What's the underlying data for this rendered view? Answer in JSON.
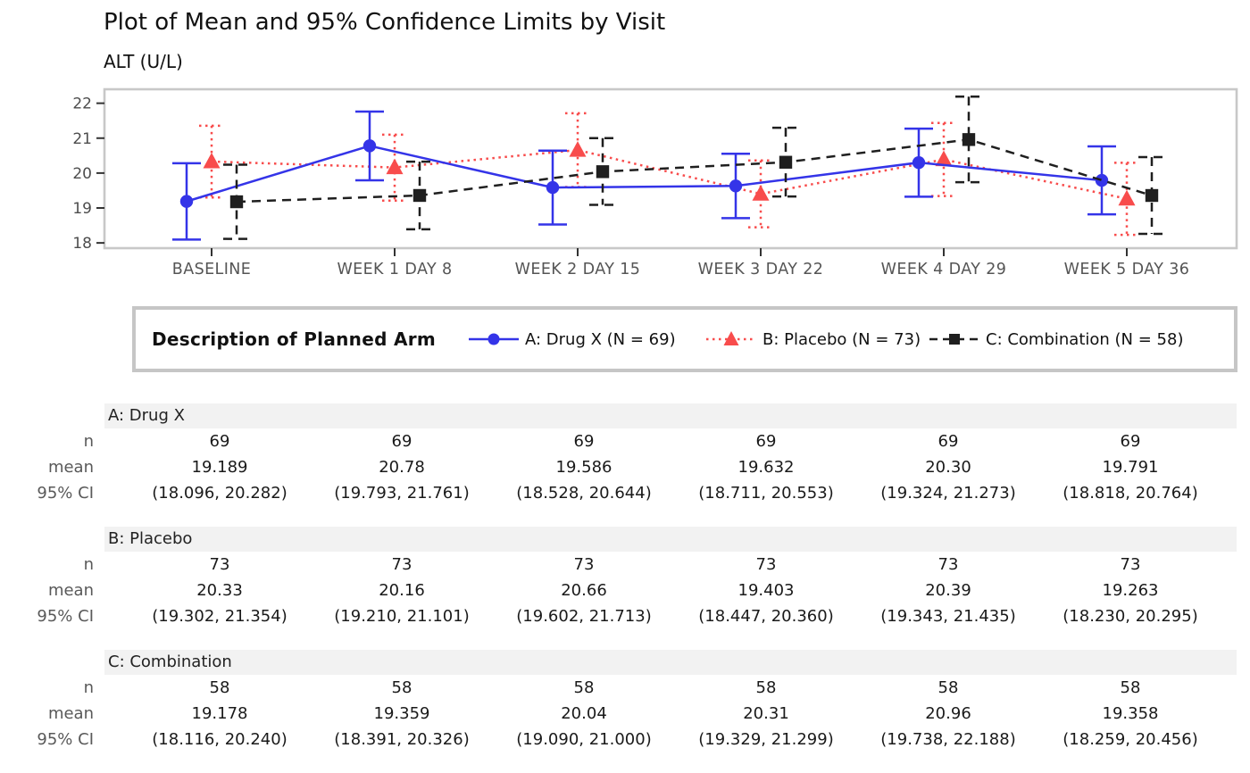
{
  "title": "Plot of Mean and 95% Confidence Limits by Visit",
  "subtitle": "ALT (U/L)",
  "legend": {
    "title": "Description of Planned Arm",
    "entries": [
      {
        "label": "A: Drug X (N = 69)",
        "marker": "circle",
        "line": "solid",
        "color": "#3434e8"
      },
      {
        "label": "B: Placebo (N = 73)",
        "marker": "triangle",
        "line": "dotted",
        "color": "#f84c4c"
      },
      {
        "label": "C: Combination (N = 58)",
        "marker": "square",
        "line": "dashed",
        "color": "#1f1f1f"
      }
    ]
  },
  "chart_data": {
    "type": "line",
    "x": [
      "BASELINE",
      "WEEK 1 DAY 8",
      "WEEK 2 DAY 15",
      "WEEK 3 DAY 22",
      "WEEK 4 DAY 29",
      "WEEK 5 DAY 36"
    ],
    "yticks": [
      18,
      19,
      20,
      21,
      22
    ],
    "ylim": [
      17.85,
      22.4
    ],
    "grid": false,
    "legend_position": "bottom-box",
    "series": [
      {
        "name": "A: Drug X (N = 69)",
        "color": "#3434e8",
        "marker": "circle",
        "line": "solid",
        "dodge": -28,
        "mean": [
          19.189,
          20.78,
          19.586,
          19.632,
          20.3,
          19.791
        ],
        "ci_low": [
          18.096,
          19.793,
          18.528,
          18.711,
          19.324,
          18.818
        ],
        "ci_high": [
          20.282,
          21.761,
          20.644,
          20.553,
          21.273,
          20.764
        ]
      },
      {
        "name": "B: Placebo (N = 73)",
        "color": "#f84c4c",
        "marker": "triangle",
        "line": "dotted",
        "dodge": 0,
        "mean": [
          20.33,
          20.16,
          20.66,
          19.403,
          20.39,
          19.263
        ],
        "ci_low": [
          19.302,
          19.21,
          19.602,
          18.447,
          19.343,
          18.23
        ],
        "ci_high": [
          21.354,
          21.101,
          21.713,
          20.36,
          21.435,
          20.295
        ]
      },
      {
        "name": "C: Combination (N = 58)",
        "color": "#1f1f1f",
        "marker": "square",
        "line": "dashed",
        "dodge": 28,
        "mean": [
          19.178,
          19.359,
          20.04,
          20.31,
          20.96,
          19.358
        ],
        "ci_low": [
          18.116,
          18.391,
          19.09,
          19.329,
          19.738,
          18.259
        ],
        "ci_high": [
          20.24,
          20.326,
          21.0,
          21.299,
          22.188,
          20.456
        ]
      }
    ]
  },
  "tables": [
    {
      "arm": "A: Drug X",
      "rows": [
        {
          "label": "n",
          "values": [
            "69",
            "69",
            "69",
            "69",
            "69",
            "69"
          ]
        },
        {
          "label": "mean",
          "values": [
            "19.189",
            "20.78",
            "19.586",
            "19.632",
            "20.30",
            "19.791"
          ]
        },
        {
          "label": "95% CI",
          "values": [
            "(18.096, 20.282)",
            "(19.793, 21.761)",
            "(18.528, 20.644)",
            "(18.711, 20.553)",
            "(19.324, 21.273)",
            "(18.818, 20.764)"
          ]
        }
      ]
    },
    {
      "arm": "B: Placebo",
      "rows": [
        {
          "label": "n",
          "values": [
            "73",
            "73",
            "73",
            "73",
            "73",
            "73"
          ]
        },
        {
          "label": "mean",
          "values": [
            "20.33",
            "20.16",
            "20.66",
            "19.403",
            "20.39",
            "19.263"
          ]
        },
        {
          "label": "95% CI",
          "values": [
            "(19.302, 21.354)",
            "(19.210, 21.101)",
            "(19.602, 21.713)",
            "(18.447, 20.360)",
            "(19.343, 21.435)",
            "(18.230, 20.295)"
          ]
        }
      ]
    },
    {
      "arm": "C: Combination",
      "rows": [
        {
          "label": "n",
          "values": [
            "58",
            "58",
            "58",
            "58",
            "58",
            "58"
          ]
        },
        {
          "label": "mean",
          "values": [
            "19.178",
            "19.359",
            "20.04",
            "20.31",
            "20.96",
            "19.358"
          ]
        },
        {
          "label": "95% CI",
          "values": [
            "(18.116, 20.240)",
            "(18.391, 20.326)",
            "(19.090, 21.000)",
            "(19.329, 21.299)",
            "(19.738, 22.188)",
            "(18.259, 20.456)"
          ]
        }
      ]
    }
  ],
  "colors": {
    "frame": "#c8c8c8",
    "tick": "#333333",
    "y_tick_label": "#4d4d4d",
    "x_tick_label": "#555555",
    "header_bg": "#f2f2f2",
    "row_label": "#595959",
    "legend_border": "#c6c6c6"
  }
}
